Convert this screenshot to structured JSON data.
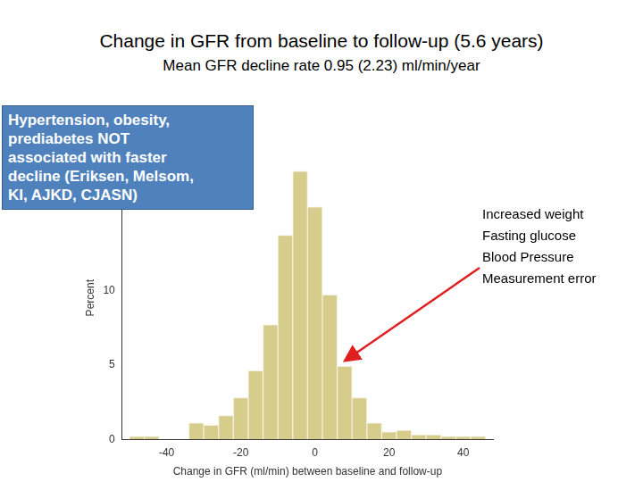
{
  "chart_data": {
    "type": "histogram",
    "title": "Change in GFR from baseline to follow-up (5.6 years)",
    "subtitle": "Mean GFR decline rate 0.95 (2.23) ml/min/year",
    "x_label": "Change in GFR (ml/min) between baseline and follow-up",
    "y_label": "Percent",
    "bins": [
      -50,
      -46,
      -42,
      -38,
      -34,
      -30,
      -26,
      -22,
      -18,
      -14,
      -10,
      -6,
      -2,
      2,
      6,
      10,
      14,
      18,
      22,
      26,
      30,
      34,
      38,
      42,
      46
    ],
    "values": [
      0.2,
      0.2,
      0,
      0,
      1.1,
      0.95,
      1.6,
      2.8,
      4.6,
      7.7,
      13.7,
      18.0,
      15.6,
      9.7,
      4.9,
      2.8,
      1.1,
      0.5,
      0.6,
      0.3,
      0.3,
      0.2,
      0.2,
      0.2
    ],
    "color": "#d6cc8c",
    "xlim": [
      -52,
      48
    ],
    "xticks": [
      -40,
      -20,
      0,
      20,
      40
    ],
    "ylim": [
      0,
      19
    ],
    "yticks": [
      0,
      5,
      10
    ],
    "grid": false,
    "annotations": [
      {
        "text": [
          "Hypertension, obesity,",
          "prediabetes NOT",
          "associated with faster",
          "decline (Eriksen, Melsom,",
          "KI, AJKD, CJASN)"
        ]
      },
      {
        "text": [
          "Increased weight",
          "Fasting glucose",
          "Blood Pressure",
          "Measurement error"
        ]
      }
    ]
  }
}
